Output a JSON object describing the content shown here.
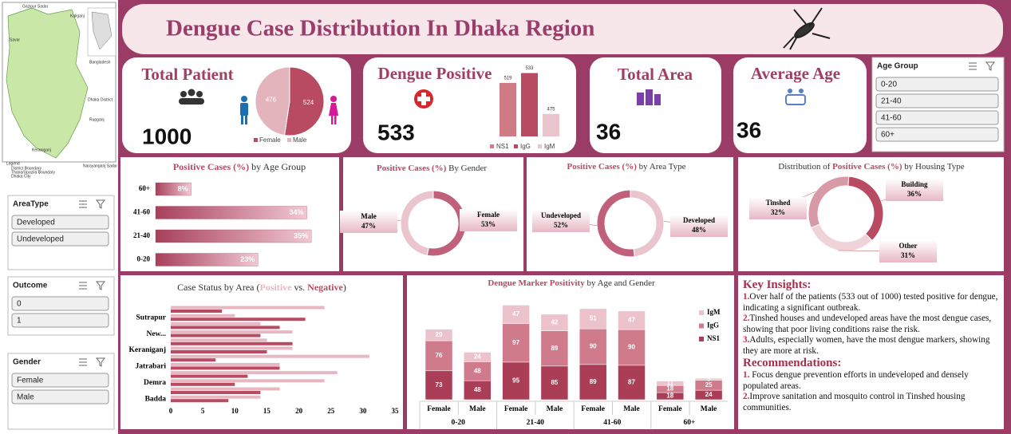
{
  "header": {
    "title": "Dengue Case Distribution In Dhaka Region"
  },
  "map": {
    "labels": [
      "Gazipur Sadar",
      "Kaliganj",
      "Bangladesh",
      "Savar",
      "Dhaka District",
      "Rupganj",
      "Keraniganj",
      "Narayanganj Sadar",
      "Legend",
      "District Boundary",
      "Thana/Upazila Boundary",
      "Dhaka City"
    ]
  },
  "slicers": [
    {
      "title": "AreaType",
      "items": [
        "Developed",
        "Undeveloped"
      ]
    },
    {
      "title": "Outcome",
      "items": [
        0,
        1
      ]
    },
    {
      "title": "Gender",
      "items": [
        "Female",
        "Male"
      ]
    },
    {
      "title": "Age Group",
      "items": [
        "0-20",
        "21-40",
        "41-60",
        "60+"
      ]
    }
  ],
  "kpis": [
    {
      "title": "Total Patient",
      "value": 1000
    },
    {
      "title": "Dengue Positive",
      "value": 533
    },
    {
      "title": "Total Area",
      "value": 36
    },
    {
      "title": "Average Age",
      "value": 36
    }
  ],
  "insights": {
    "heading": "Key Insights:",
    "items": [
      {
        "num": "1.",
        "text": "Over half of the patients (533 out of 1000) tested positive for dengue, indicating a significant outbreak."
      },
      {
        "num": "2.",
        "text": "Tinshed houses and undeveloped areas have the most dengue cases, showing that poor living conditions raise the risk."
      },
      {
        "num": "3.",
        "text": "Adults, especially women, have the most dengue markers, showing they are more at risk."
      }
    ],
    "rec_heading": "Recommendations:",
    "recs": [
      {
        "num": "1.",
        "text": " Focus dengue prevention efforts in undeveloped and densely populated areas."
      },
      {
        "num": "2.",
        "text": "Improve sanitation and mosquito control in Tinshed housing communities."
      }
    ]
  },
  "chart_data": [
    {
      "type": "pie",
      "categories": [
        "Female",
        "Male"
      ],
      "values": [
        524,
        476
      ],
      "colors": [
        "#b84a62",
        "#e4b4bd"
      ]
    },
    {
      "type": "bar",
      "categories": [
        "NS1",
        "IgG",
        "IgM"
      ],
      "values": [
        519,
        533,
        475
      ],
      "colors": [
        "#cf7b86",
        "#b84a62",
        "#ebc5cd"
      ],
      "ylim": [
        443,
        545
      ]
    },
    {
      "type": "hbar",
      "title": [
        "Positive Cases (%)",
        " by Age Group"
      ],
      "categories": [
        "60+",
        "41-60",
        "21-40",
        "0-20"
      ],
      "values": [
        8,
        34,
        35,
        23
      ],
      "value_labels": [
        "8%",
        "34%",
        "35%",
        "23%"
      ],
      "xlim": [
        0,
        40
      ],
      "color": "#a8405c"
    },
    {
      "type": "donut",
      "title": [
        "Positive Cases (%)",
        " By Gender"
      ],
      "categories": [
        "Female",
        "Male"
      ],
      "values": [
        53,
        47
      ],
      "value_labels": [
        "53%",
        "47%"
      ],
      "colors": [
        "#c0607a",
        "#ebc5cd"
      ]
    },
    {
      "type": "donut",
      "title": [
        "Positive Cases (%)",
        " by Area Type"
      ],
      "categories": [
        "Developed",
        "Undeveloped"
      ],
      "values": [
        48,
        52
      ],
      "value_labels": [
        "48%",
        "52%"
      ],
      "colors": [
        "#ebc5cd",
        "#c0607a"
      ]
    },
    {
      "type": "donut",
      "title": [
        "Distribution of ",
        "Positive Cases (%)",
        " by Housing Type"
      ],
      "categories": [
        "Building",
        "Other",
        "Tinshed"
      ],
      "values": [
        36,
        31,
        32
      ],
      "value_labels": [
        "36%",
        "31%",
        "32%"
      ],
      "colors": [
        "#b84a62",
        "#f0d3d9",
        "#d99aa8"
      ]
    },
    {
      "type": "grouped_hbar",
      "title": [
        "Case Status by Area (",
        "Positive",
        " vs. ",
        "Negative",
        ")"
      ],
      "categories": [
        null,
        "Sutrapur",
        null,
        "New...",
        null,
        "Keraniganj",
        null,
        "Jatrabari",
        null,
        "Demra",
        null,
        "Badda"
      ],
      "series": [
        {
          "color": "#e8b8c2",
          "values": [
            24,
            10,
            14,
            19,
            15,
            19,
            31,
            17,
            26,
            24,
            17,
            14
          ]
        },
        {
          "color": "#b84a62",
          "values": [
            8,
            21,
            17,
            14,
            19,
            15,
            7,
            17,
            12,
            10,
            14,
            9
          ]
        }
      ],
      "xlim": [
        0,
        35
      ],
      "xticks": [
        0,
        5,
        10,
        15,
        20,
        25,
        30,
        35
      ]
    },
    {
      "type": "stacked_bar",
      "title": [
        "Dengue Marker Positivity",
        " by Age and Gender"
      ],
      "categories": [
        "Female",
        "Male",
        "Female",
        "Male",
        "Female",
        "Male",
        "Female",
        "Male"
      ],
      "groups": [
        "0-20",
        "21-40",
        "41-60",
        "60+"
      ],
      "series": [
        {
          "name": "NS1",
          "color": "#ab3e57",
          "values": [
            73,
            48,
            95,
            85,
            89,
            87,
            18,
            24
          ]
        },
        {
          "name": "IgG",
          "color": "#cf7b8c",
          "values": [
            76,
            48,
            97,
            89,
            90,
            90,
            18,
            25
          ]
        },
        {
          "name": "IgM",
          "color": "#ecc3cc",
          "values": [
            29,
            24,
            47,
            42,
            51,
            47,
            11,
            5
          ]
        }
      ],
      "ylim": [
        0,
        250
      ]
    }
  ]
}
